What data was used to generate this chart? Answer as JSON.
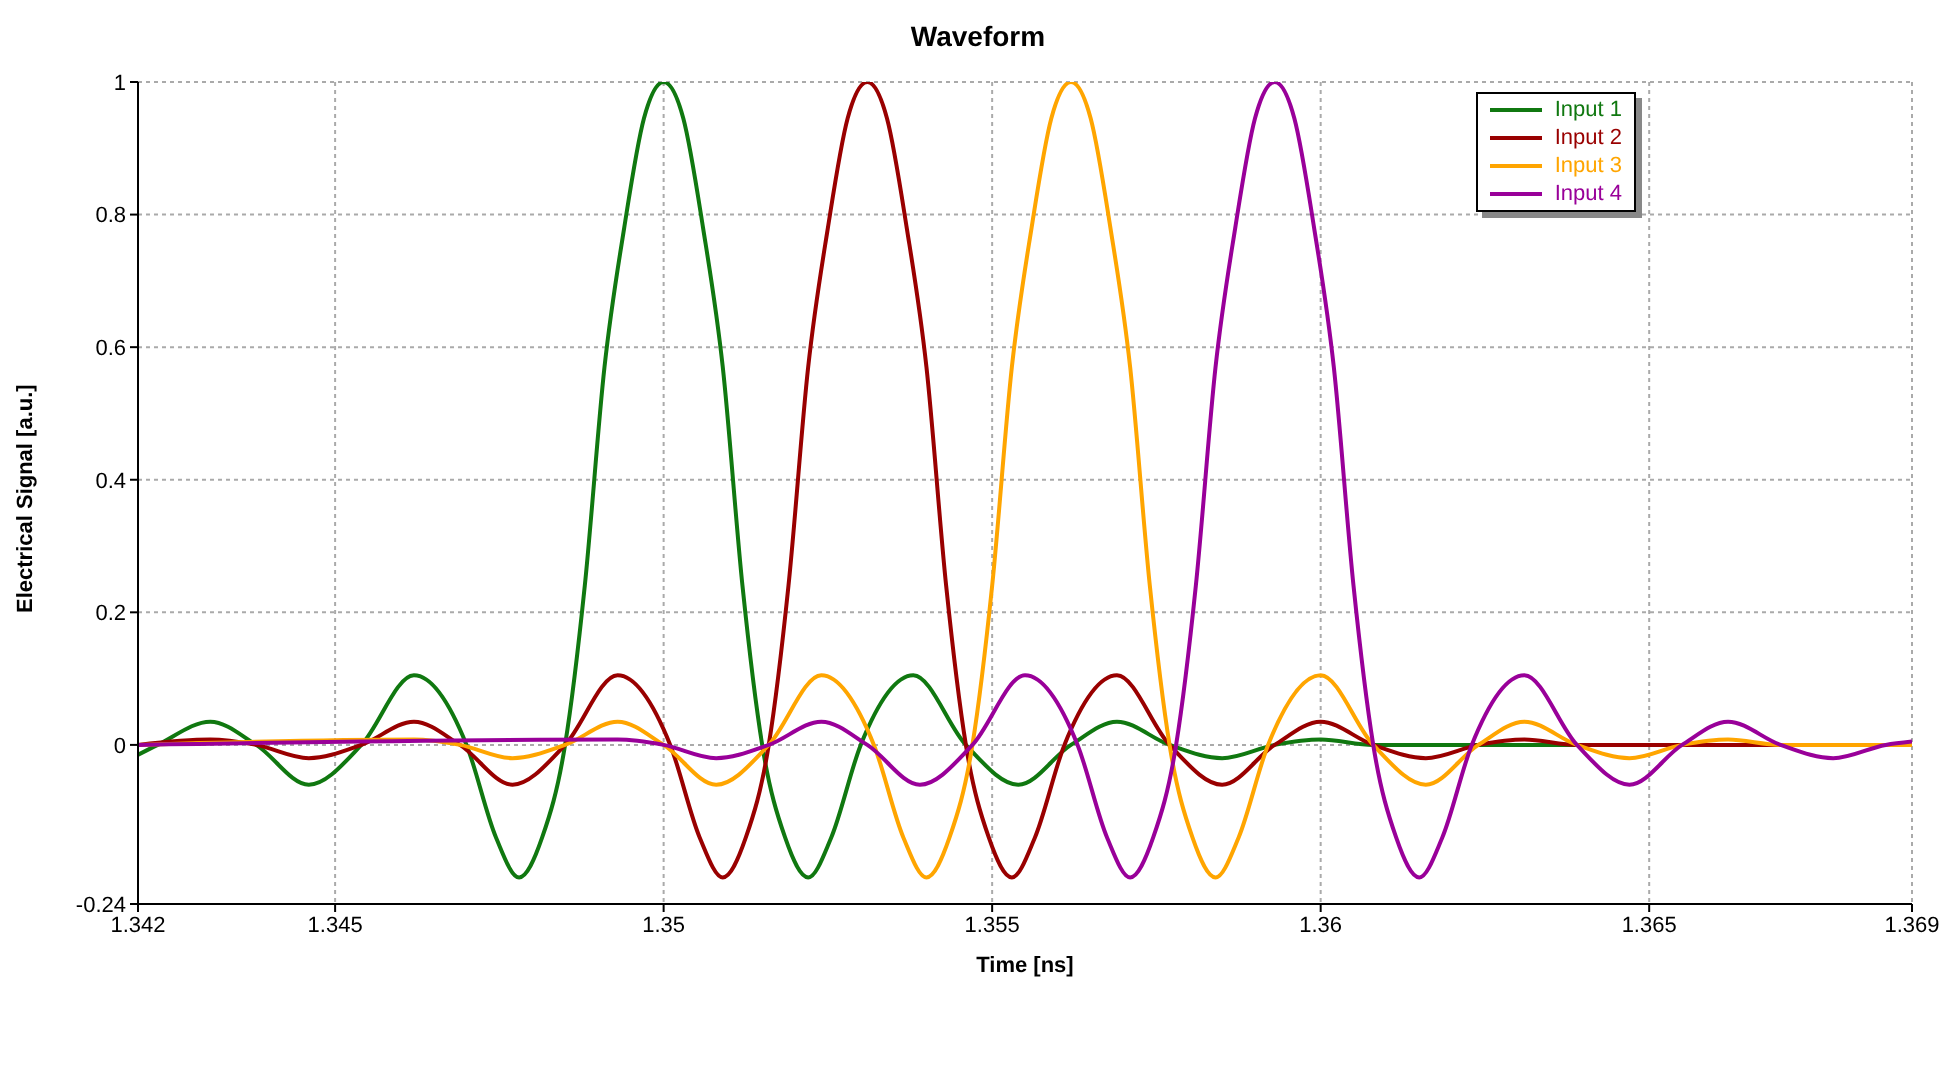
{
  "chart_data": {
    "type": "line",
    "title": "Waveform",
    "xlabel": "Time [ns]",
    "ylabel": "Electrical Signal [a.u.]",
    "xlim": [
      1.342,
      1.369
    ],
    "xticks": [
      1.342,
      1.345,
      1.35,
      1.355,
      1.36,
      1.365,
      1.369
    ],
    "ylim": [
      -0.24,
      1
    ],
    "yticks": [
      -0.24,
      0,
      0.2,
      0.4,
      0.6,
      0.8,
      1
    ],
    "grid": true,
    "legend": "top right",
    "marker": "none",
    "line_style": "solid",
    "series": [
      {
        "name": "Input 1",
        "color": "#107810",
        "x": [
          1.342,
          1.3423,
          1.3431,
          1.3438,
          1.3446,
          1.3454,
          1.3462,
          1.347,
          1.34745,
          1.3478,
          1.34815,
          1.3485,
          1.3488,
          1.3491,
          1.3494,
          1.3497,
          1.35,
          1.3503,
          1.3506,
          1.3509,
          1.3512,
          1.3515,
          1.35185,
          1.3522,
          1.35255,
          1.353,
          1.3538,
          1.3546,
          1.3554,
          1.3562,
          1.3569,
          1.3577,
          1.3585,
          1.3593,
          1.36,
          1.3608,
          1.369
        ],
        "values": [
          -0.015,
          0,
          0.035,
          0,
          -0.06,
          0,
          0.105,
          0,
          -0.14,
          -0.2,
          -0.14,
          0,
          0.24,
          0.57,
          0.78,
          0.945,
          1,
          0.945,
          0.78,
          0.57,
          0.24,
          0,
          -0.14,
          -0.2,
          -0.14,
          0,
          0.105,
          0,
          -0.06,
          0,
          0.035,
          0,
          -0.02,
          0,
          0.008,
          0,
          0
        ]
      },
      {
        "name": "Input 2",
        "color": "#990000",
        "x": [
          1.342,
          1.3431,
          1.3438,
          1.3446,
          1.3454,
          1.3462,
          1.3469,
          1.3477,
          1.3485,
          1.3493,
          1.3501,
          1.35055,
          1.3509,
          1.35125,
          1.3516,
          1.3519,
          1.3522,
          1.3525,
          1.3528,
          1.3531,
          1.3534,
          1.3537,
          1.354,
          1.3543,
          1.3546,
          1.35495,
          1.3553,
          1.35565,
          1.3561,
          1.3569,
          1.3577,
          1.3585,
          1.3593,
          1.36,
          1.3608,
          1.3616,
          1.3624,
          1.3631,
          1.3639,
          1.369
        ],
        "values": [
          0,
          0.008,
          0,
          -0.02,
          0,
          0.035,
          0,
          -0.06,
          0,
          0.105,
          0,
          -0.14,
          -0.2,
          -0.14,
          0,
          0.24,
          0.57,
          0.78,
          0.945,
          1,
          0.945,
          0.78,
          0.57,
          0.24,
          0,
          -0.14,
          -0.2,
          -0.14,
          0,
          0.105,
          0,
          -0.06,
          0,
          0.035,
          0,
          -0.02,
          0,
          0.008,
          0,
          0
        ]
      },
      {
        "name": "Input 3",
        "color": "#ffa500",
        "x": [
          1.342,
          1.3462,
          1.3469,
          1.3477,
          1.3485,
          1.3493,
          1.35,
          1.3508,
          1.3516,
          1.3524,
          1.3532,
          1.35365,
          1.354,
          1.35435,
          1.3547,
          1.355,
          1.3553,
          1.3556,
          1.3559,
          1.3562,
          1.3565,
          1.3568,
          1.3571,
          1.3574,
          1.3577,
          1.35805,
          1.3584,
          1.35875,
          1.3592,
          1.36,
          1.3608,
          1.3616,
          1.3624,
          1.3631,
          1.3639,
          1.3647,
          1.3655,
          1.3662,
          1.367,
          1.369
        ],
        "values": [
          0,
          0.008,
          0,
          -0.02,
          0,
          0.035,
          0,
          -0.06,
          0,
          0.105,
          0,
          -0.14,
          -0.2,
          -0.14,
          0,
          0.24,
          0.57,
          0.78,
          0.945,
          1,
          0.945,
          0.78,
          0.57,
          0.24,
          0,
          -0.14,
          -0.2,
          -0.14,
          0,
          0.105,
          0,
          -0.06,
          0,
          0.035,
          0,
          -0.02,
          0,
          0.008,
          0,
          0
        ]
      },
      {
        "name": "Input 4",
        "color": "#990099",
        "x": [
          1.342,
          1.3493,
          1.35,
          1.3508,
          1.3516,
          1.3524,
          1.3531,
          1.3539,
          1.3547,
          1.3555,
          1.3563,
          1.35675,
          1.3571,
          1.35745,
          1.3578,
          1.3581,
          1.3584,
          1.3587,
          1.359,
          1.3593,
          1.3596,
          1.3599,
          1.3602,
          1.3605,
          1.3608,
          1.36115,
          1.3615,
          1.36185,
          1.3623,
          1.3631,
          1.3639,
          1.3647,
          1.3655,
          1.3662,
          1.367,
          1.3678,
          1.3686,
          1.369
        ],
        "values": [
          0,
          0.008,
          0,
          -0.02,
          0,
          0.035,
          0,
          -0.06,
          0,
          0.105,
          0,
          -0.14,
          -0.2,
          -0.14,
          0,
          0.24,
          0.57,
          0.78,
          0.945,
          1,
          0.945,
          0.78,
          0.57,
          0.24,
          0,
          -0.14,
          -0.2,
          -0.14,
          0,
          0.105,
          0,
          -0.06,
          0,
          0.035,
          0,
          -0.02,
          0,
          0.005
        ]
      }
    ]
  }
}
